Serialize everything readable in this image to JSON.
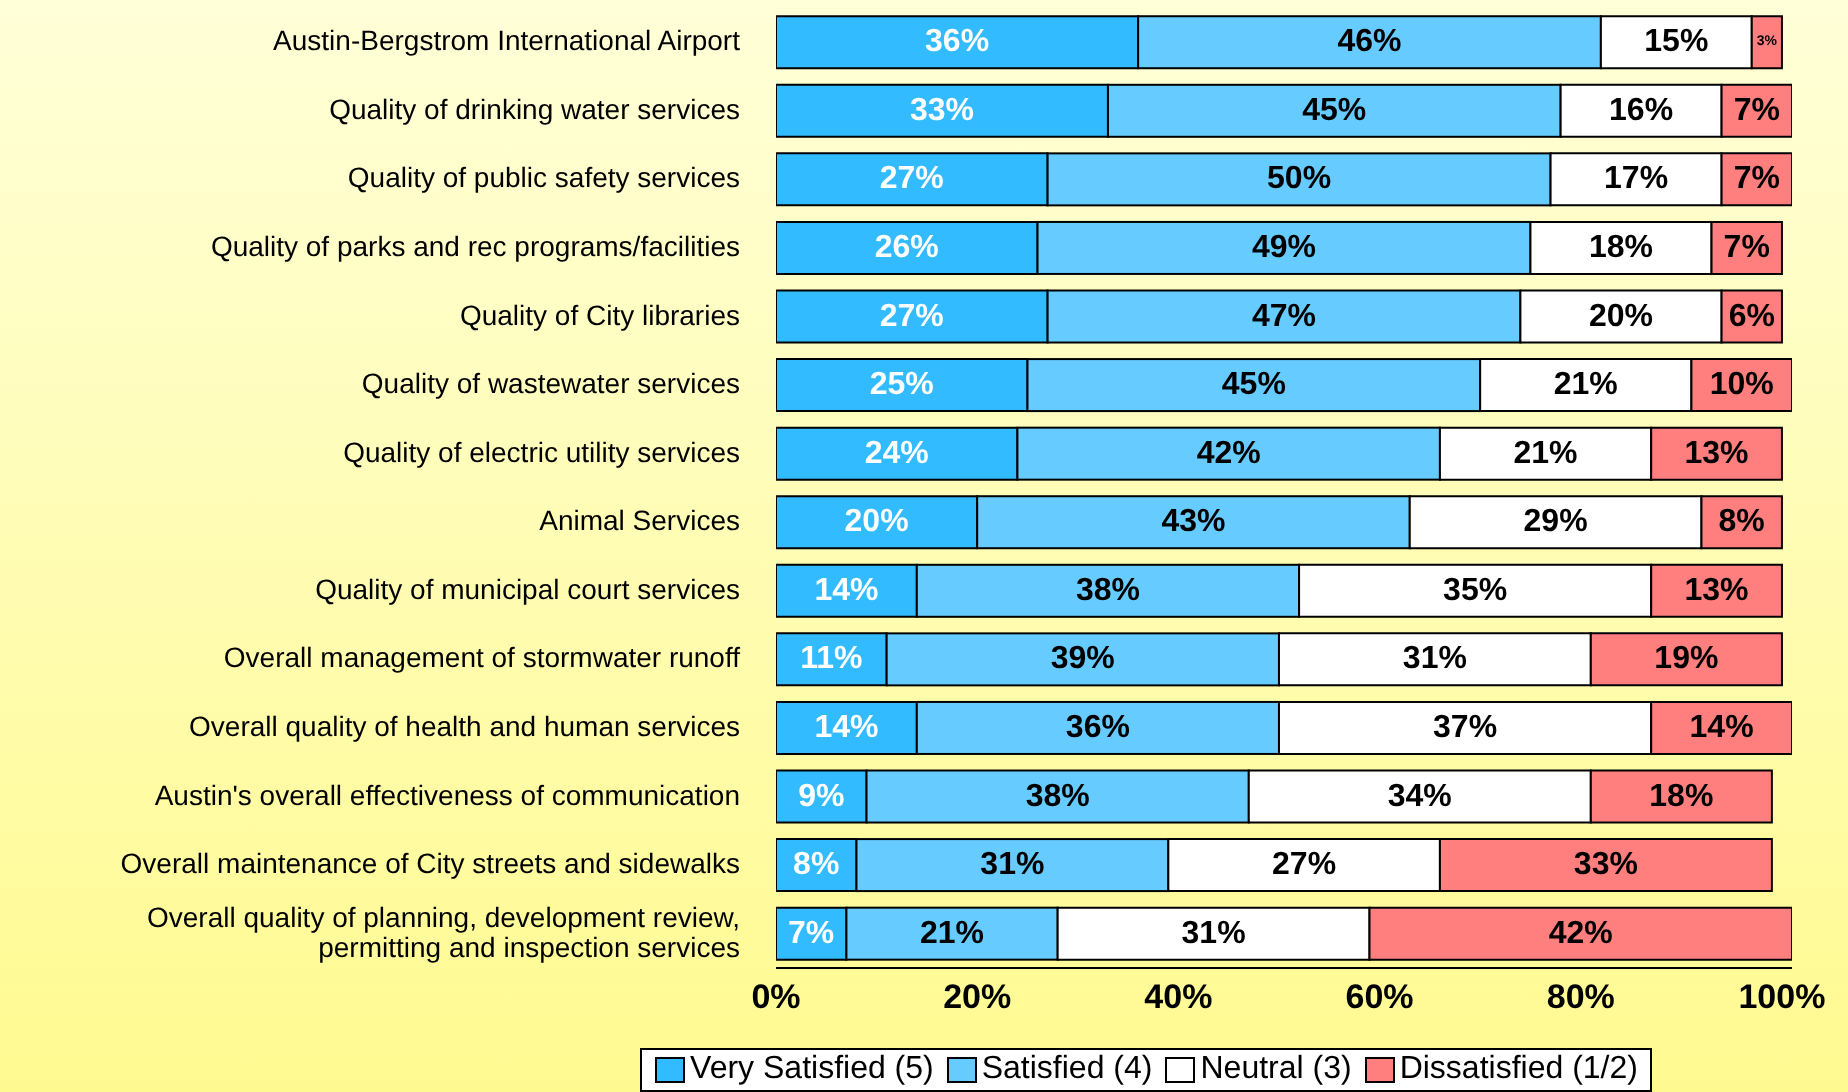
{
  "chart_data": {
    "type": "bar",
    "orientation": "horizontal",
    "stacked": true,
    "categories": [
      "Austin-Bergstrom International Airport",
      "Quality of drinking water services",
      "Quality of public safety services",
      "Quality of parks and rec programs/facilities",
      "Quality of City libraries",
      "Quality of wastewater services",
      "Quality of electric utility services",
      "Animal Services",
      "Quality of municipal court services",
      "Overall management of stormwater runoff",
      "Overall quality of health and human services",
      "Austin's overall effectiveness of communication",
      "Overall maintenance of City streets and sidewalks",
      "Overall quality of planning, development review, permitting and inspection services"
    ],
    "series": [
      {
        "name": "Very Satisfied (5)",
        "color": "#33bbff",
        "values": [
          36,
          33,
          27,
          26,
          27,
          25,
          24,
          20,
          14,
          11,
          14,
          9,
          8,
          7
        ],
        "value_labels": [
          "36%",
          "33%",
          "27%",
          "26%",
          "27%",
          "25%",
          "24%",
          "20%",
          "14%",
          "11%",
          "14%",
          "9%",
          "8%",
          "7%"
        ]
      },
      {
        "name": "Satisfied (4)",
        "color": "#66ccff",
        "values": [
          46,
          45,
          50,
          49,
          47,
          45,
          42,
          43,
          38,
          39,
          36,
          38,
          31,
          21
        ],
        "value_labels": [
          "46%",
          "45%",
          "50%",
          "49%",
          "47%",
          "45%",
          "42%",
          "43%",
          "38%",
          "39%",
          "36%",
          "38%",
          "31%",
          "21%"
        ]
      },
      {
        "name": "Neutral (3)",
        "color": "#ffffff",
        "values": [
          15,
          16,
          17,
          18,
          20,
          21,
          21,
          29,
          35,
          31,
          37,
          34,
          27,
          31
        ],
        "value_labels": [
          "15%",
          "16%",
          "17%",
          "18%",
          "20%",
          "21%",
          "21%",
          "29%",
          "35%",
          "31%",
          "37%",
          "34%",
          "27%",
          "31%"
        ]
      },
      {
        "name": "Dissatisfied (1/2)",
        "color": "#ff7f7f",
        "values": [
          3,
          7,
          7,
          7,
          6,
          10,
          13,
          8,
          13,
          19,
          14,
          18,
          33,
          42
        ],
        "value_labels": [
          "3%",
          "7%",
          "7%",
          "7%",
          "6%",
          "10%",
          "13%",
          "8%",
          "13%",
          "19%",
          "14%",
          "18%",
          "33%",
          "42%"
        ]
      }
    ],
    "xlim": [
      0,
      101
    ],
    "xticks": [
      {
        "value": 0,
        "label": "0%"
      },
      {
        "value": 20,
        "label": "20%"
      },
      {
        "value": 40,
        "label": "40%"
      },
      {
        "value": 60,
        "label": "60%"
      },
      {
        "value": 80,
        "label": "80%"
      },
      {
        "value": 100,
        "label": "100%"
      }
    ],
    "grid": false,
    "legend": "bottom"
  }
}
